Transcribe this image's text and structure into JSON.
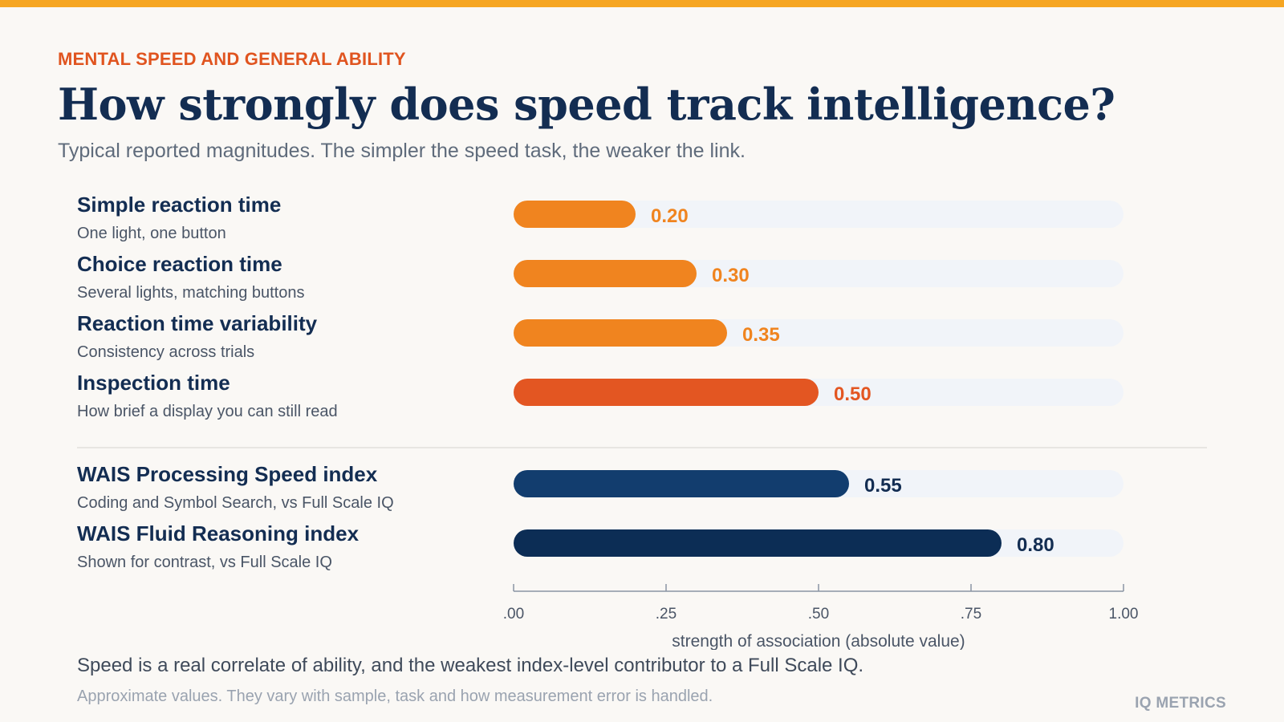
{
  "header": {
    "eyebrow": "MENTAL SPEED AND GENERAL ABILITY",
    "title": "How strongly does speed track intelligence?",
    "subtitle": "Typical reported magnitudes. The simpler the speed task, the weaker the link."
  },
  "chart_data": {
    "type": "bar",
    "orientation": "horizontal",
    "categories": [
      "Simple reaction time",
      "Choice reaction time",
      "Reaction time variability",
      "Inspection time",
      "WAIS Processing Speed index",
      "WAIS Fluid Reasoning index"
    ],
    "descriptions": [
      "One light, one button",
      "Several lights, matching buttons",
      "Consistency across trials",
      "How brief a display you can still read",
      "Coding and Symbol Search, vs Full Scale IQ",
      "Shown for contrast, vs Full Scale IQ"
    ],
    "values": [
      0.2,
      0.3,
      0.35,
      0.5,
      0.55,
      0.8
    ],
    "value_labels": [
      "0.20",
      "0.30",
      "0.35",
      "0.50",
      "0.55",
      "0.80"
    ],
    "colors": [
      "#f0841f",
      "#f0841f",
      "#f0841f",
      "#e35622",
      "#123d6e",
      "#0c2d55"
    ],
    "label_colors": [
      "#f0841f",
      "#f0841f",
      "#f0841f",
      "#e35622",
      "#132d52",
      "#132d52"
    ],
    "track_color": "#f1f4f9",
    "xlim": [
      0,
      1
    ],
    "xticks": [
      0,
      0.25,
      0.5,
      0.75,
      1.0
    ],
    "xtick_labels": [
      ".00",
      ".25",
      ".50",
      ".75",
      "1.00"
    ],
    "xlabel": "strength of association (absolute value)",
    "ylabel": "",
    "grid": false,
    "group_divider_after_index": 3
  },
  "footer": {
    "note": "Speed is a real correlate of ability, and the weakest index-level contributor to a Full Scale IQ.",
    "caveat": "Approximate values. They vary with sample, task and how measurement error is handled.",
    "brand": "IQ METRICS"
  }
}
